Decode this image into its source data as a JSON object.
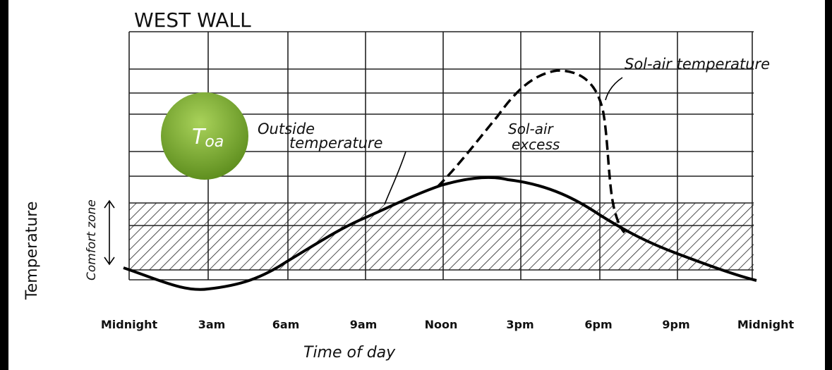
{
  "title": "WEST WALL",
  "x_axis": {
    "label": "Time of day",
    "ticks": [
      "Midnight",
      "3am",
      "6am",
      "9am",
      "Noon",
      "3pm",
      "6pm",
      "9pm",
      "Midnight"
    ]
  },
  "y_axis": {
    "label": "Temperature"
  },
  "annotations": {
    "sol_air": "Sol-air temperature",
    "outside_1": "Outside",
    "outside_2": "temperature",
    "excess_1": "Sol-air",
    "excess_2": "excess",
    "comfort": "Comfort zone"
  },
  "badge": {
    "main": "T",
    "sub": "oa"
  }
}
